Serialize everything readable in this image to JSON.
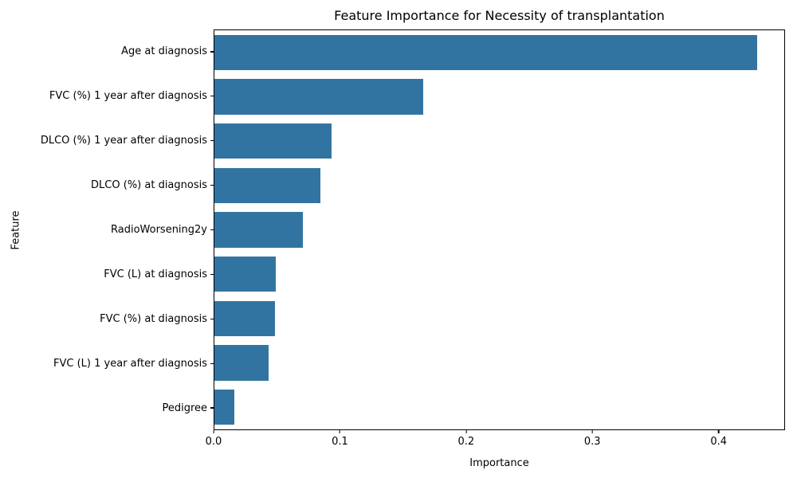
{
  "chart_data": {
    "type": "bar",
    "orientation": "horizontal",
    "title": "Feature Importance for Necessity of transplantation",
    "xlabel": "Importance",
    "ylabel": "Feature",
    "categories": [
      "Age at diagnosis",
      "FVC (%) 1 year after diagnosis",
      "DLCO (%) 1 year after diagnosis",
      "DLCO (%) at diagnosis",
      "RadioWorsening2y",
      "FVC (L) at diagnosis",
      "FVC (%) at diagnosis",
      "FVC (L) 1 year after diagnosis",
      "Pedigree"
    ],
    "values": [
      0.431,
      0.166,
      0.093,
      0.084,
      0.07,
      0.049,
      0.048,
      0.043,
      0.016
    ],
    "xlim": [
      0,
      0.4526
    ],
    "xticks": [
      0.0,
      0.1,
      0.2,
      0.3,
      0.4
    ],
    "xtick_labels": [
      "0.0",
      "0.1",
      "0.2",
      "0.3",
      "0.4"
    ],
    "bar_color": "#3274a1",
    "grid": false,
    "legend": null,
    "background_color": "#ffffff",
    "spine_color": "#000000"
  }
}
